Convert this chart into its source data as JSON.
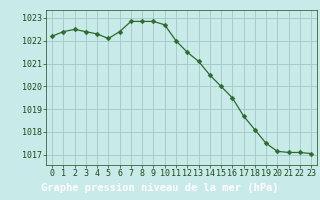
{
  "x": [
    0,
    1,
    2,
    3,
    4,
    5,
    6,
    7,
    8,
    9,
    10,
    11,
    12,
    13,
    14,
    15,
    16,
    17,
    18,
    19,
    20,
    21,
    22,
    23
  ],
  "y": [
    1022.2,
    1022.4,
    1022.5,
    1022.4,
    1022.3,
    1022.1,
    1022.4,
    1022.85,
    1022.85,
    1022.85,
    1022.7,
    1022.0,
    1021.5,
    1021.1,
    1020.5,
    1020.0,
    1019.5,
    1018.7,
    1018.1,
    1017.5,
    1017.15,
    1017.1,
    1017.1,
    1017.05
  ],
  "line_color": "#2d6a2d",
  "marker": "D",
  "marker_size": 2.5,
  "bg_color": "#c8eae8",
  "grid_color": "#a0c8c4",
  "title": "Graphe pression niveau de la mer (hPa)",
  "title_fontsize": 7.5,
  "title_color": "#1a4a1a",
  "title_bg": "#4a8a4a",
  "tick_color": "#1a4a1a",
  "tick_fontsize": 6,
  "xlim": [
    -0.5,
    23.5
  ],
  "ylim": [
    1016.55,
    1023.35
  ],
  "yticks": [
    1017,
    1018,
    1019,
    1020,
    1021,
    1022,
    1023
  ],
  "xticks": [
    0,
    1,
    2,
    3,
    4,
    5,
    6,
    7,
    8,
    9,
    10,
    11,
    12,
    13,
    14,
    15,
    16,
    17,
    18,
    19,
    20,
    21,
    22,
    23
  ]
}
